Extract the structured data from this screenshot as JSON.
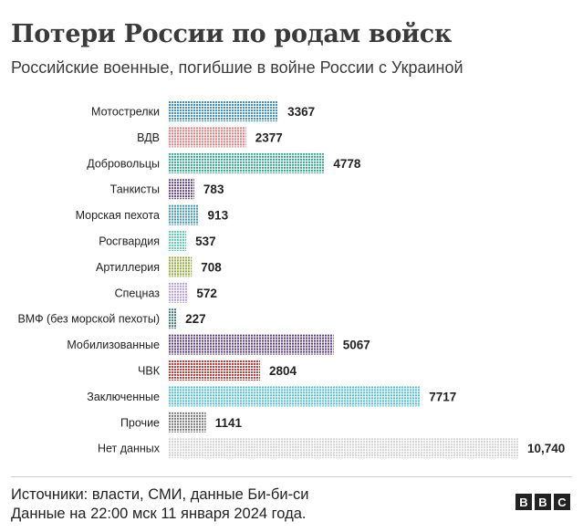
{
  "header": {
    "title": "Потери России по родам войск",
    "subtitle": "Российские военные, погибшие в войне России с Украиной"
  },
  "footer": {
    "source_line": "Источники: власти, СМИ, данные Би-би-си",
    "date_line": "Данные на 22:00 мск 11 января 2024 года.",
    "logo_letters": [
      "B",
      "B",
      "C"
    ]
  },
  "chart_data": {
    "type": "bar",
    "orientation": "horizontal",
    "categories": [
      "Мотострелки",
      "ВДВ",
      "Добровольцы",
      "Танкисты",
      "Морская пехота",
      "Росгвардия",
      "Артиллерия",
      "Спецназ",
      "ВМФ (без морской пехоты)",
      "Мобилизованные",
      "ЧВК",
      "Заключенные",
      "Прочие",
      "Нет данных"
    ],
    "values": [
      3367,
      2377,
      4778,
      783,
      913,
      537,
      708,
      572,
      227,
      5067,
      2804,
      7717,
      1141,
      10740
    ],
    "value_labels": [
      "3367",
      "2377",
      "4778",
      "783",
      "913",
      "537",
      "708",
      "572",
      "227",
      "5067",
      "2804",
      "7717",
      "1141",
      "10,740"
    ],
    "colors": [
      "#3d8fd1",
      "#e07b7b",
      "#2fa88a",
      "#5e3f8f",
      "#3f9ab8",
      "#5fd3b0",
      "#8fae3a",
      "#b79ee0",
      "#3c7a72",
      "#5b3a8c",
      "#c93b3b",
      "#4cc2d9",
      "#7a7a7a",
      "#d4d4d4"
    ],
    "xlim": [
      0,
      10740
    ],
    "grid": false,
    "legend": "none"
  }
}
